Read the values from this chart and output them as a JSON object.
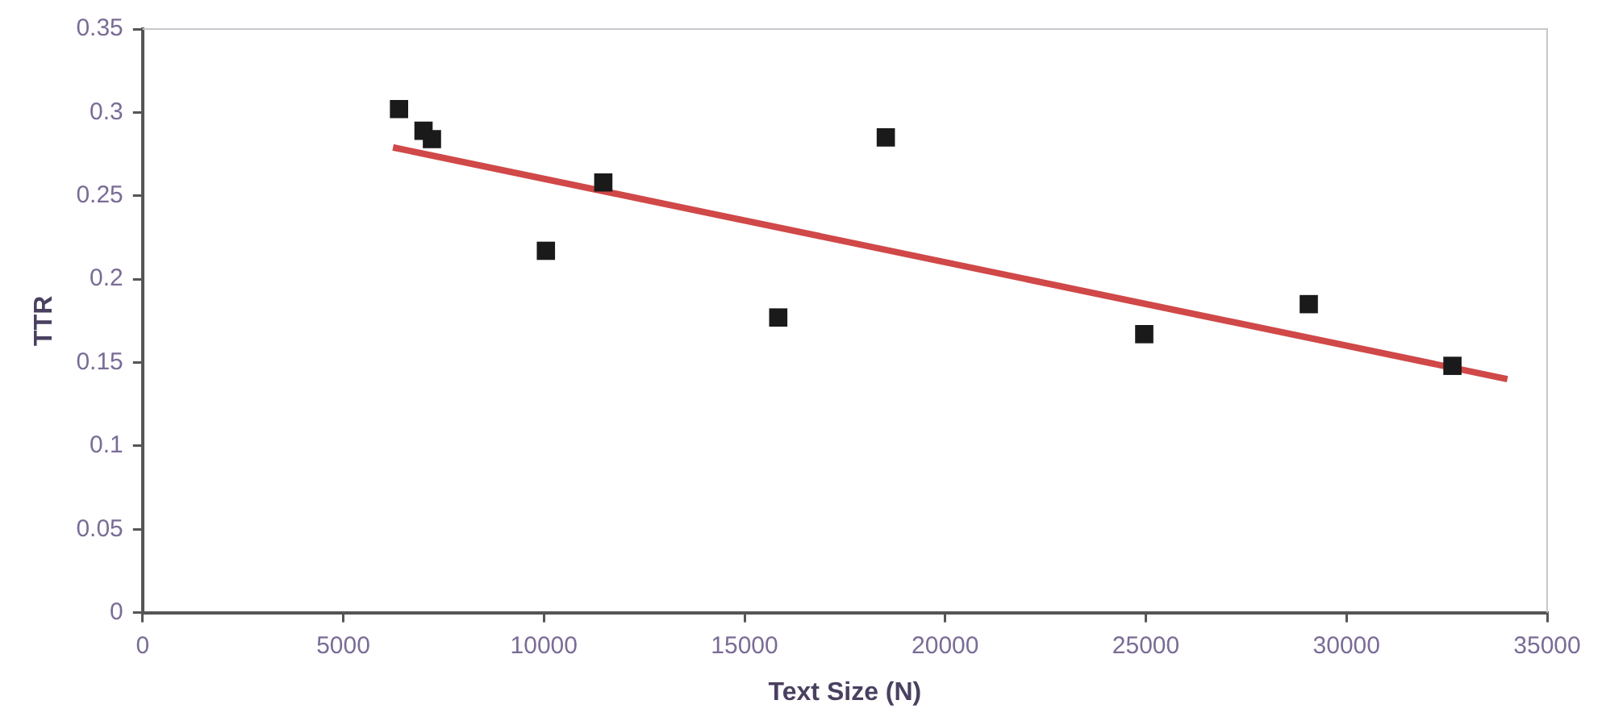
{
  "chart_data": {
    "type": "scatter",
    "xlabel": "Text Size (N)",
    "ylabel": "TTR",
    "marker": "square",
    "grid": false,
    "legend": false,
    "xlim": [
      0,
      35000
    ],
    "xticks": [
      0,
      5000,
      10000,
      15000,
      20000,
      25000,
      30000,
      35000
    ],
    "ylim": [
      0,
      0.35
    ],
    "yticks": [
      0,
      0.05,
      0.1,
      0.15,
      0.2,
      0.25,
      0.3,
      0.35
    ],
    "series": [
      {
        "type": "scatter",
        "color": "#1a1a1a",
        "x": [
          6390,
          7000,
          7210,
          10050,
          11480,
          15840,
          18520,
          24960,
          29060,
          32640
        ],
        "values": [
          0.302,
          0.289,
          0.284,
          0.217,
          0.258,
          0.177,
          0.285,
          0.167,
          0.185,
          0.148
        ]
      },
      {
        "type": "line",
        "color": "#d04848",
        "marker": "none",
        "x": [
          6240,
          34010
        ],
        "values": [
          0.279,
          0.14
        ]
      }
    ]
  }
}
